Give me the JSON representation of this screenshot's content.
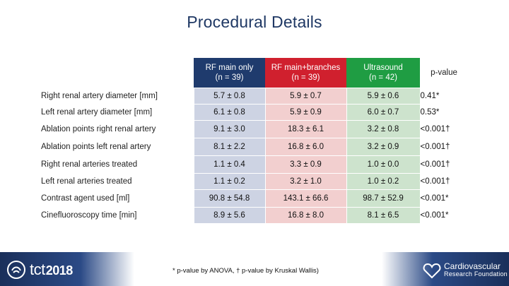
{
  "slide": {
    "title": "Procedural Details",
    "footnote": "* p-value by ANOVA, † p-value by Kruskal Wallis)"
  },
  "table": {
    "headers": [
      {
        "line1": "RF main only",
        "line2": "(n = 39)"
      },
      {
        "line1": "RF main+branches",
        "line2": "(n = 39)"
      },
      {
        "line1": "Ultrasound",
        "line2": "(n = 42)"
      },
      {
        "line1": "p-value",
        "line2": ""
      }
    ],
    "rows": [
      {
        "label": "Right renal artery diameter [mm]",
        "rf": "5.7 ± 0.8",
        "rfb": "5.9 ± 0.7",
        "us": "5.9 ± 0.6",
        "p": "0.41*"
      },
      {
        "label": "Left renal artery diameter [mm]",
        "rf": "6.1 ± 0.8",
        "rfb": "5.9 ± 0.9",
        "us": "6.0 ± 0.7",
        "p": "0.53*"
      },
      {
        "label": "Ablation points right renal artery",
        "rf": "9.1 ± 3.0",
        "rfb": "18.3 ± 6.1",
        "us": "3.2 ± 0.8",
        "p": "<0.001†"
      },
      {
        "label": "Ablation points left renal artery",
        "rf": "8.1 ± 2.2",
        "rfb": "16.8 ± 6.0",
        "us": "3.2 ± 0.9",
        "p": "<0.001†"
      },
      {
        "label": "Right renal arteries treated",
        "rf": "1.1 ± 0.4",
        "rfb": "3.3 ± 0.9",
        "us": "1.0 ± 0.0",
        "p": "<0.001†"
      },
      {
        "label": "Left renal arteries treated",
        "rf": "1.1 ± 0.2",
        "rfb": "3.2 ± 1.0",
        "us": "1.0 ± 0.2",
        "p": "<0.001†"
      },
      {
        "label": "Contrast agent used [ml]",
        "rf": "90.8 ± 54.8",
        "rfb": "143.1 ± 66.6",
        "us": "98.7 ± 52.9",
        "p": "<0.001*"
      },
      {
        "label": "Cinefluoroscopy time [min]",
        "rf": "8.9 ± 5.6",
        "rfb": "16.8 ± 8.0",
        "us": "8.1 ± 6.5",
        "p": "<0.001*"
      }
    ]
  },
  "footer": {
    "tct_logo": {
      "word": "tct",
      "year": "2018",
      "icon": "tct-logo-icon"
    },
    "crf_logo": {
      "line1": "Cardiovascular",
      "line2": "Research Foundation",
      "icon": "heart-logo-icon"
    }
  },
  "colors": {
    "title": "#1f3864",
    "rf_main": "#1f3b6d",
    "rf_branches": "#d0202e",
    "ultrasound": "#1f9d43",
    "rf_main_light": "#cdd3e3",
    "rf_branches_light": "#f2cfcf",
    "ultrasound_light": "#cde3cd",
    "footer_bar": "#2b4a86"
  }
}
